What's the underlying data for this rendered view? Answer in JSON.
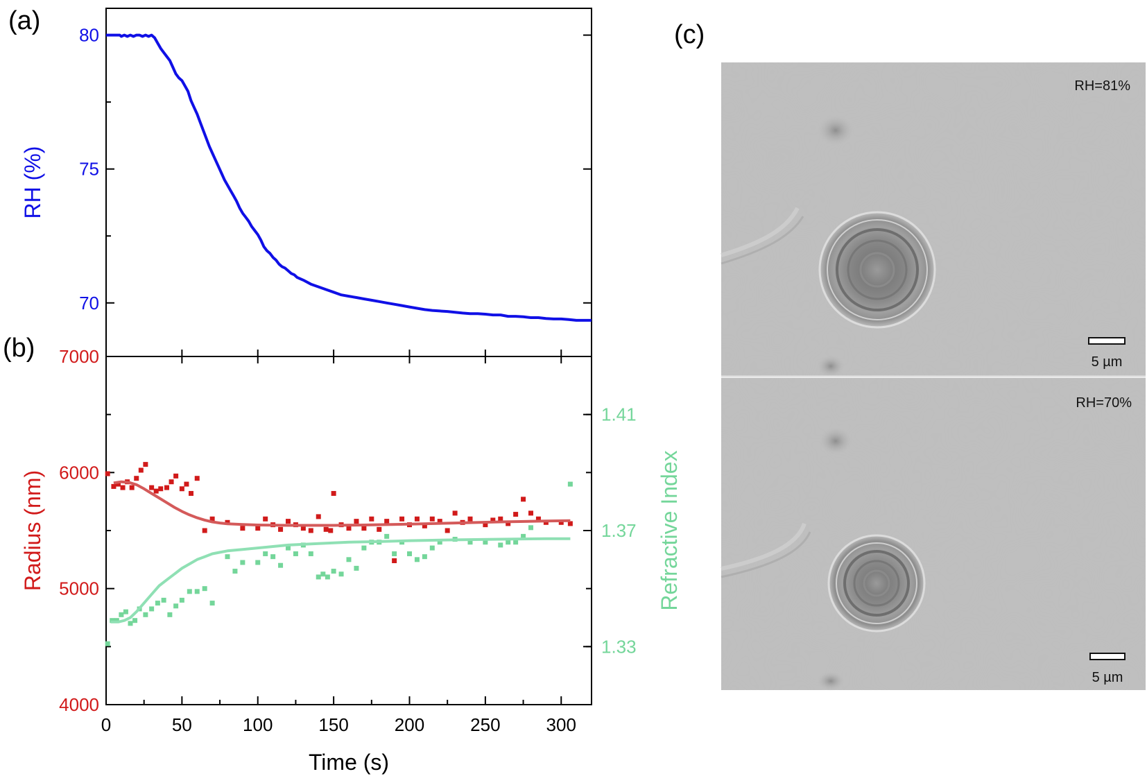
{
  "panels": {
    "a": "(a)",
    "b": "(b)",
    "c": "(c)"
  },
  "colors": {
    "rh": "#1010e6",
    "radius": "#d11a1a",
    "radius_fit": "#d45a5a",
    "ri": "#74d69a",
    "ri_fit": "#8fe0b4",
    "axis": "#000000"
  },
  "chart_data": [
    {
      "type": "line",
      "id": "rh",
      "xlabel": "",
      "ylabel": "RH (%)",
      "xlim": [
        0,
        320
      ],
      "ylim": [
        68,
        81
      ],
      "yticks": [
        70,
        75,
        80
      ],
      "yticklabels": [
        "70",
        "75",
        "80"
      ],
      "series": [
        {
          "x": [
            0,
            3,
            6,
            9,
            10,
            12,
            14,
            16,
            18,
            20,
            22,
            24,
            26,
            28,
            30,
            32,
            34,
            36,
            38,
            40,
            42,
            44,
            46,
            48,
            50,
            52,
            54,
            56,
            58,
            60,
            62,
            64,
            66,
            68,
            70,
            72,
            74,
            76,
            78,
            80,
            82,
            84,
            86,
            88,
            90,
            92,
            94,
            96,
            98,
            100,
            102,
            104,
            106,
            108,
            110,
            112,
            114,
            116,
            118,
            120,
            122,
            124,
            126,
            128,
            130,
            135,
            140,
            145,
            150,
            155,
            160,
            165,
            170,
            175,
            180,
            185,
            190,
            195,
            200,
            205,
            210,
            215,
            220,
            225,
            230,
            235,
            240,
            245,
            250,
            255,
            260,
            265,
            270,
            275,
            280,
            285,
            290,
            295,
            300,
            305,
            310,
            315,
            320
          ],
          "y": [
            80.0,
            80.0,
            80.0,
            80.0,
            79.95,
            80.0,
            79.95,
            80.0,
            79.95,
            80.0,
            80.0,
            79.95,
            80.0,
            79.95,
            80.0,
            79.9,
            79.7,
            79.5,
            79.35,
            79.2,
            79.05,
            78.8,
            78.55,
            78.4,
            78.3,
            78.1,
            77.9,
            77.55,
            77.3,
            77.05,
            76.75,
            76.45,
            76.15,
            75.85,
            75.6,
            75.35,
            75.1,
            74.85,
            74.6,
            74.4,
            74.2,
            74.0,
            73.8,
            73.55,
            73.35,
            73.2,
            73.05,
            72.85,
            72.7,
            72.55,
            72.35,
            72.1,
            71.95,
            71.85,
            71.7,
            71.6,
            71.45,
            71.35,
            71.3,
            71.2,
            71.1,
            71.05,
            70.95,
            70.9,
            70.85,
            70.7,
            70.6,
            70.5,
            70.4,
            70.3,
            70.25,
            70.2,
            70.15,
            70.1,
            70.05,
            70.0,
            69.95,
            69.9,
            69.85,
            69.8,
            69.75,
            69.72,
            69.7,
            69.68,
            69.65,
            69.62,
            69.6,
            69.6,
            69.58,
            69.55,
            69.55,
            69.5,
            69.5,
            69.48,
            69.45,
            69.45,
            69.42,
            69.4,
            69.4,
            69.38,
            69.35,
            69.35,
            69.35
          ]
        }
      ]
    },
    {
      "type": "scatter",
      "id": "radius_ri",
      "xlabel": "Time (s)",
      "ylabel": "Radius (nm)",
      "y2label": "Refractive Index",
      "xlim": [
        0,
        320
      ],
      "xticks": [
        0,
        50,
        100,
        150,
        200,
        250,
        300
      ],
      "xticklabels": [
        "0",
        "50",
        "100",
        "150",
        "200",
        "250",
        "300"
      ],
      "ylim": [
        4000,
        7000
      ],
      "yticks": [
        4000,
        5000,
        6000,
        7000
      ],
      "yticklabels": [
        "4000",
        "5000",
        "6000",
        "7000"
      ],
      "y2lim": [
        1.31,
        1.43
      ],
      "y2ticks": [
        1.33,
        1.37,
        1.41
      ],
      "y2ticklabels": [
        "1.33",
        "1.37",
        "1.41"
      ],
      "series": [
        {
          "name": "radius-points",
          "axis": "left",
          "x": [
            1,
            5,
            8,
            11,
            14,
            17,
            20,
            23,
            26,
            30,
            33,
            36,
            40,
            43,
            46,
            50,
            53,
            56,
            60,
            65,
            70,
            80,
            90,
            100,
            105,
            110,
            115,
            120,
            125,
            130,
            135,
            140,
            145,
            148,
            150,
            155,
            160,
            165,
            170,
            175,
            180,
            185,
            190,
            195,
            200,
            205,
            210,
            215,
            220,
            225,
            230,
            235,
            240,
            250,
            255,
            260,
            265,
            270,
            275,
            280,
            285,
            290,
            300,
            306
          ],
          "y": [
            5990,
            5880,
            5900,
            5870,
            5920,
            5870,
            5950,
            6020,
            6070,
            5870,
            5840,
            5860,
            5870,
            5920,
            5970,
            5860,
            5900,
            5820,
            5950,
            5500,
            5600,
            5570,
            5520,
            5520,
            5600,
            5550,
            5510,
            5580,
            5550,
            5520,
            5500,
            5620,
            5510,
            5500,
            5820,
            5550,
            5520,
            5580,
            5520,
            5600,
            5510,
            5580,
            5240,
            5600,
            5550,
            5600,
            5540,
            5600,
            5580,
            5500,
            5650,
            5570,
            5600,
            5550,
            5590,
            5600,
            5560,
            5640,
            5770,
            5650,
            5600,
            5570,
            5570,
            5560
          ]
        },
        {
          "name": "ri-points",
          "axis": "right",
          "x": [
            1,
            4,
            7,
            10,
            13,
            16,
            19,
            22,
            26,
            30,
            34,
            38,
            42,
            46,
            50,
            55,
            60,
            65,
            70,
            80,
            85,
            90,
            100,
            105,
            110,
            115,
            120,
            125,
            130,
            135,
            140,
            143,
            146,
            150,
            155,
            160,
            165,
            170,
            175,
            180,
            185,
            190,
            195,
            200,
            205,
            210,
            215,
            220,
            230,
            240,
            250,
            260,
            265,
            270,
            275,
            280,
            306
          ],
          "y": [
            1.331,
            1.339,
            1.339,
            1.341,
            1.342,
            1.338,
            1.339,
            1.343,
            1.341,
            1.343,
            1.345,
            1.346,
            1.341,
            1.344,
            1.346,
            1.349,
            1.349,
            1.35,
            1.345,
            1.361,
            1.356,
            1.359,
            1.359,
            1.362,
            1.361,
            1.358,
            1.364,
            1.362,
            1.365,
            1.362,
            1.354,
            1.355,
            1.354,
            1.356,
            1.355,
            1.36,
            1.357,
            1.364,
            1.366,
            1.366,
            1.368,
            1.362,
            1.366,
            1.362,
            1.36,
            1.361,
            1.364,
            1.366,
            1.367,
            1.366,
            1.366,
            1.365,
            1.366,
            1.366,
            1.368,
            1.371,
            1.386
          ]
        },
        {
          "name": "radius-fit",
          "axis": "left",
          "x": [
            5,
            10,
            15,
            20,
            25,
            30,
            35,
            40,
            45,
            50,
            55,
            60,
            65,
            70,
            75,
            80,
            90,
            100,
            110,
            120,
            130,
            140,
            150,
            170,
            200,
            230,
            260,
            290,
            306
          ],
          "y": [
            5910,
            5920,
            5915,
            5895,
            5860,
            5820,
            5780,
            5740,
            5700,
            5665,
            5635,
            5610,
            5590,
            5575,
            5565,
            5558,
            5552,
            5548,
            5546,
            5545,
            5545,
            5545,
            5545,
            5548,
            5555,
            5565,
            5575,
            5582,
            5585
          ]
        },
        {
          "name": "ri-fit",
          "axis": "right",
          "x": [
            3,
            8,
            12,
            16,
            20,
            25,
            30,
            35,
            40,
            45,
            50,
            55,
            60,
            65,
            70,
            75,
            80,
            90,
            100,
            110,
            120,
            140,
            160,
            180,
            200,
            230,
            260,
            290,
            306
          ],
          "y": [
            1.3385,
            1.3385,
            1.339,
            1.34,
            1.342,
            1.345,
            1.348,
            1.351,
            1.353,
            1.355,
            1.357,
            1.3585,
            1.36,
            1.361,
            1.362,
            1.3625,
            1.363,
            1.3635,
            1.364,
            1.3645,
            1.365,
            1.3655,
            1.366,
            1.3662,
            1.3665,
            1.3668,
            1.367,
            1.3672,
            1.3672
          ]
        }
      ]
    }
  ],
  "micrographs": [
    {
      "rh_label": "RH=81%",
      "scale_label": "5 µm"
    },
    {
      "rh_label": "RH=70%",
      "scale_label": "5 µm"
    }
  ]
}
